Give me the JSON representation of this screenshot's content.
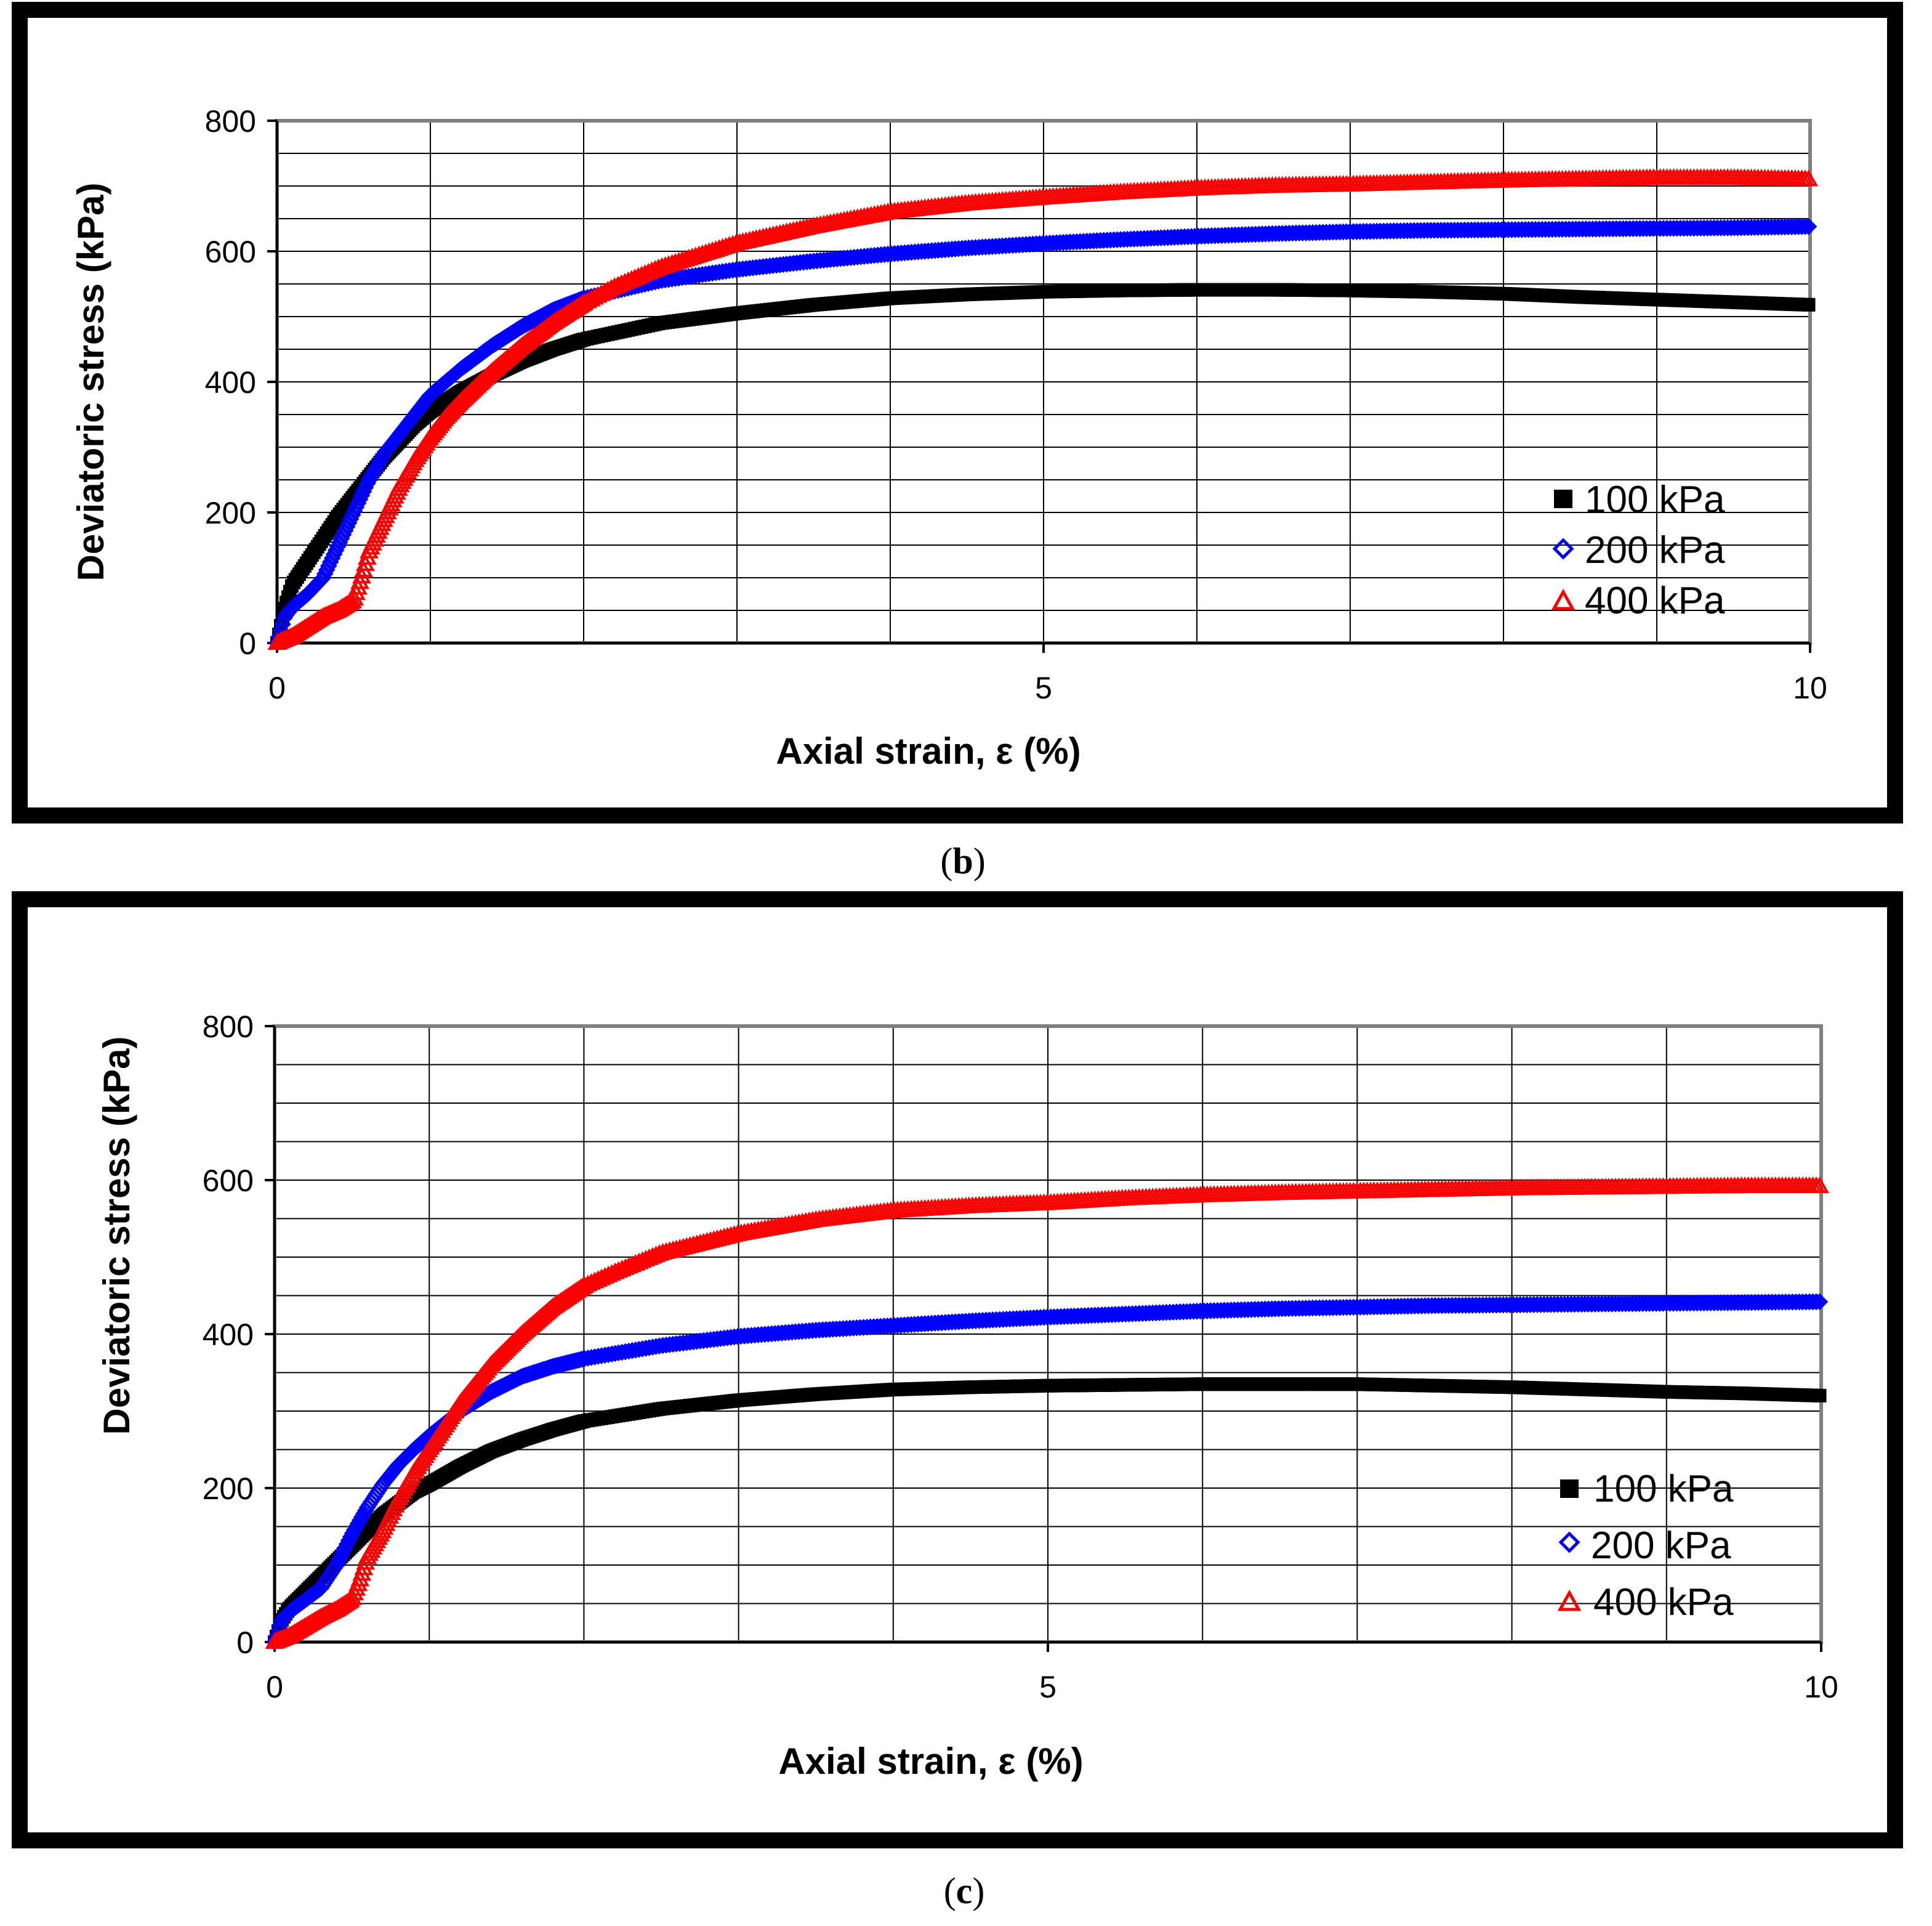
{
  "chart_data": [
    {
      "type": "scatter",
      "panel_label": "b",
      "caption_open": "(",
      "caption_close": ")",
      "xlabel": "Axial strain, ε (%)",
      "ylabel": "Deviatoric stress  (kPa)",
      "xlim": [
        0,
        10
      ],
      "ylim": [
        0,
        800
      ],
      "x_ticks": [
        0,
        5,
        10
      ],
      "y_ticks": [
        0,
        200,
        400,
        600,
        800
      ],
      "grid": "major x every 1, y every 50",
      "legend_position": "bottom-right",
      "series": [
        {
          "name": "100 kPa",
          "color": "#000000",
          "marker": "square",
          "points": [
            [
              0,
              0
            ],
            [
              0.05,
              55
            ],
            [
              0.1,
              90
            ],
            [
              0.2,
              125
            ],
            [
              0.3,
              160
            ],
            [
              0.4,
              195
            ],
            [
              0.5,
              225
            ],
            [
              0.6,
              255
            ],
            [
              0.7,
              285
            ],
            [
              0.8,
              310
            ],
            [
              0.9,
              335
            ],
            [
              1.0,
              355
            ],
            [
              1.2,
              385
            ],
            [
              1.4,
              410
            ],
            [
              1.6,
              432
            ],
            [
              1.8,
              450
            ],
            [
              2.0,
              465
            ],
            [
              2.5,
              490
            ],
            [
              3.0,
              505
            ],
            [
              3.5,
              518
            ],
            [
              4.0,
              528
            ],
            [
              4.5,
              534
            ],
            [
              5.0,
              538
            ],
            [
              5.5,
              540
            ],
            [
              6.0,
              541
            ],
            [
              6.5,
              541
            ],
            [
              7.0,
              540
            ],
            [
              7.5,
              538
            ],
            [
              8.0,
              535
            ],
            [
              8.5,
              530
            ],
            [
              9.0,
              526
            ],
            [
              9.5,
              522
            ],
            [
              10.0,
              518
            ]
          ]
        },
        {
          "name": "200 kPa",
          "color": "#0000ff",
          "marker": "diamond",
          "points": [
            [
              0,
              0
            ],
            [
              0.05,
              40
            ],
            [
              0.1,
              55
            ],
            [
              0.2,
              75
            ],
            [
              0.3,
              100
            ],
            [
              0.4,
              150
            ],
            [
              0.5,
              200
            ],
            [
              0.6,
              250
            ],
            [
              0.7,
              290
            ],
            [
              0.8,
              320
            ],
            [
              0.9,
              350
            ],
            [
              1.0,
              380
            ],
            [
              1.2,
              420
            ],
            [
              1.4,
              455
            ],
            [
              1.6,
              485
            ],
            [
              1.8,
              510
            ],
            [
              2.0,
              528
            ],
            [
              2.5,
              555
            ],
            [
              3.0,
              572
            ],
            [
              3.5,
              585
            ],
            [
              4.0,
              596
            ],
            [
              4.5,
              605
            ],
            [
              5.0,
              612
            ],
            [
              5.5,
              618
            ],
            [
              6.0,
              623
            ],
            [
              6.5,
              627
            ],
            [
              7.0,
              630
            ],
            [
              7.5,
              632
            ],
            [
              8.0,
              633
            ],
            [
              8.5,
              634
            ],
            [
              9.0,
              635
            ],
            [
              9.5,
              636
            ],
            [
              10.0,
              638
            ]
          ]
        },
        {
          "name": "400 kPa",
          "color": "#ff0000",
          "marker": "triangle",
          "points": [
            [
              0,
              0
            ],
            [
              0.1,
              10
            ],
            [
              0.2,
              25
            ],
            [
              0.3,
              40
            ],
            [
              0.4,
              50
            ],
            [
              0.5,
              65
            ],
            [
              0.55,
              100
            ],
            [
              0.6,
              140
            ],
            [
              0.7,
              190
            ],
            [
              0.8,
              240
            ],
            [
              0.9,
              280
            ],
            [
              1.0,
              315
            ],
            [
              1.1,
              345
            ],
            [
              1.2,
              370
            ],
            [
              1.4,
              415
            ],
            [
              1.6,
              455
            ],
            [
              1.8,
              490
            ],
            [
              2.0,
              520
            ],
            [
              2.2,
              545
            ],
            [
              2.5,
              575
            ],
            [
              3.0,
              612
            ],
            [
              3.5,
              638
            ],
            [
              4.0,
              660
            ],
            [
              4.5,
              673
            ],
            [
              5.0,
              682
            ],
            [
              5.5,
              690
            ],
            [
              6.0,
              696
            ],
            [
              6.5,
              700
            ],
            [
              7.0,
              702
            ],
            [
              7.5,
              705
            ],
            [
              8.0,
              708
            ],
            [
              8.5,
              710
            ],
            [
              9.0,
              712
            ],
            [
              9.5,
              712
            ],
            [
              10.0,
              710
            ]
          ]
        }
      ]
    },
    {
      "type": "scatter",
      "panel_label": "c",
      "caption_open": "(",
      "caption_close": ")",
      "xlabel": "Axial strain, ε (%)",
      "ylabel": "Deviatoric stress (kPa)",
      "xlim": [
        0,
        10
      ],
      "ylim": [
        0,
        800
      ],
      "x_ticks": [
        0,
        5,
        10
      ],
      "y_ticks": [
        0,
        200,
        400,
        600,
        800
      ],
      "grid": "major x every 1, y every 50",
      "legend_position": "bottom-right",
      "series": [
        {
          "name": "100 kPa",
          "color": "#000000",
          "marker": "square",
          "points": [
            [
              0,
              0
            ],
            [
              0.05,
              30
            ],
            [
              0.1,
              45
            ],
            [
              0.2,
              65
            ],
            [
              0.3,
              85
            ],
            [
              0.4,
              105
            ],
            [
              0.5,
              125
            ],
            [
              0.6,
              145
            ],
            [
              0.7,
              165
            ],
            [
              0.8,
              180
            ],
            [
              0.9,
              195
            ],
            [
              1.0,
              205
            ],
            [
              1.2,
              228
            ],
            [
              1.4,
              248
            ],
            [
              1.6,
              263
            ],
            [
              1.8,
              276
            ],
            [
              2.0,
              287
            ],
            [
              2.5,
              303
            ],
            [
              3.0,
              314
            ],
            [
              3.5,
              322
            ],
            [
              4.0,
              328
            ],
            [
              4.5,
              331
            ],
            [
              5.0,
              333
            ],
            [
              5.5,
              334
            ],
            [
              6.0,
              335
            ],
            [
              6.5,
              335
            ],
            [
              7.0,
              335
            ],
            [
              7.5,
              333
            ],
            [
              8.0,
              331
            ],
            [
              8.5,
              328
            ],
            [
              9.0,
              325
            ],
            [
              9.5,
              323
            ],
            [
              10.0,
              320
            ]
          ]
        },
        {
          "name": "200 kPa",
          "color": "#0000ff",
          "marker": "diamond",
          "points": [
            [
              0,
              0
            ],
            [
              0.05,
              30
            ],
            [
              0.1,
              40
            ],
            [
              0.2,
              55
            ],
            [
              0.3,
              70
            ],
            [
              0.4,
              100
            ],
            [
              0.5,
              140
            ],
            [
              0.6,
              175
            ],
            [
              0.7,
              205
            ],
            [
              0.8,
              230
            ],
            [
              0.9,
              250
            ],
            [
              1.0,
              268
            ],
            [
              1.2,
              300
            ],
            [
              1.4,
              325
            ],
            [
              1.6,
              345
            ],
            [
              1.8,
              358
            ],
            [
              2.0,
              368
            ],
            [
              2.5,
              385
            ],
            [
              3.0,
              397
            ],
            [
              3.5,
              405
            ],
            [
              4.0,
              411
            ],
            [
              4.5,
              417
            ],
            [
              5.0,
              422
            ],
            [
              5.5,
              426
            ],
            [
              6.0,
              430
            ],
            [
              6.5,
              433
            ],
            [
              7.0,
              435
            ],
            [
              7.5,
              437
            ],
            [
              8.0,
              438
            ],
            [
              8.5,
              439
            ],
            [
              9.0,
              440
            ],
            [
              9.5,
              441
            ],
            [
              10.0,
              442
            ]
          ]
        },
        {
          "name": "400 kPa",
          "color": "#ff0000",
          "marker": "triangle",
          "points": [
            [
              0,
              0
            ],
            [
              0.1,
              8
            ],
            [
              0.2,
              20
            ],
            [
              0.3,
              32
            ],
            [
              0.4,
              42
            ],
            [
              0.5,
              55
            ],
            [
              0.55,
              80
            ],
            [
              0.6,
              110
            ],
            [
              0.7,
              145
            ],
            [
              0.8,
              185
            ],
            [
              0.9,
              220
            ],
            [
              1.0,
              250
            ],
            [
              1.2,
              310
            ],
            [
              1.4,
              360
            ],
            [
              1.6,
              400
            ],
            [
              1.8,
              435
            ],
            [
              2.0,
              462
            ],
            [
              2.2,
              480
            ],
            [
              2.5,
              505
            ],
            [
              3.0,
              530
            ],
            [
              3.5,
              548
            ],
            [
              4.0,
              560
            ],
            [
              4.5,
              566
            ],
            [
              5.0,
              570
            ],
            [
              5.5,
              576
            ],
            [
              6.0,
              580
            ],
            [
              6.5,
              583
            ],
            [
              7.0,
              585
            ],
            [
              7.5,
              587
            ],
            [
              8.0,
              589
            ],
            [
              8.5,
              590
            ],
            [
              9.0,
              591
            ],
            [
              9.5,
              592
            ],
            [
              10.0,
              592
            ]
          ]
        }
      ]
    }
  ]
}
